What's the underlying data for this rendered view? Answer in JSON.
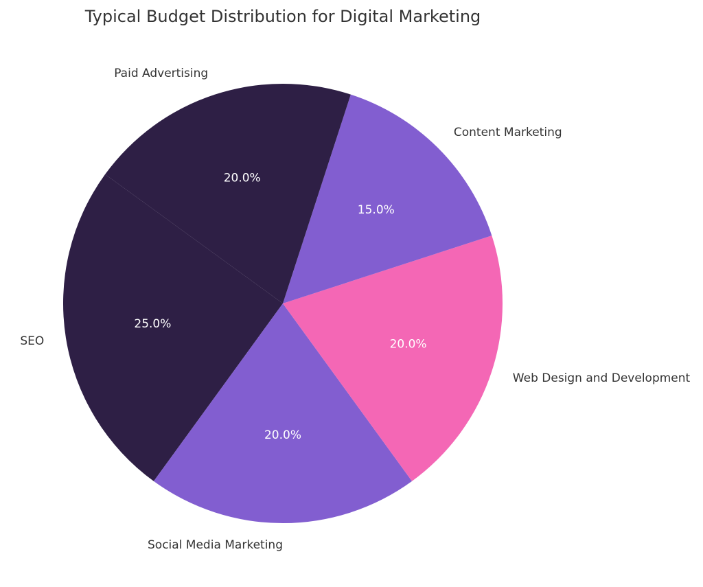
{
  "chart_data": {
    "type": "pie",
    "title": "Typical Budget Distribution for Digital Marketing",
    "slices": [
      {
        "label": "SEO",
        "value": 25.0,
        "pct_label": "25.0%",
        "color": "#2e1f45"
      },
      {
        "label": "Social Media Marketing",
        "value": 20.0,
        "pct_label": "20.0%",
        "color": "#825ed0"
      },
      {
        "label": "Web Design and Development",
        "value": 20.0,
        "pct_label": "20.0%",
        "color": "#f467b5"
      },
      {
        "label": "Content Marketing",
        "value": 15.0,
        "pct_label": "15.0%",
        "color": "#825ed0"
      },
      {
        "label": "Paid Advertising",
        "value": 20.0,
        "pct_label": "20.0%",
        "color": "#2e1f45"
      }
    ],
    "start_angle_deg": 144,
    "direction": "counterclockwise"
  }
}
